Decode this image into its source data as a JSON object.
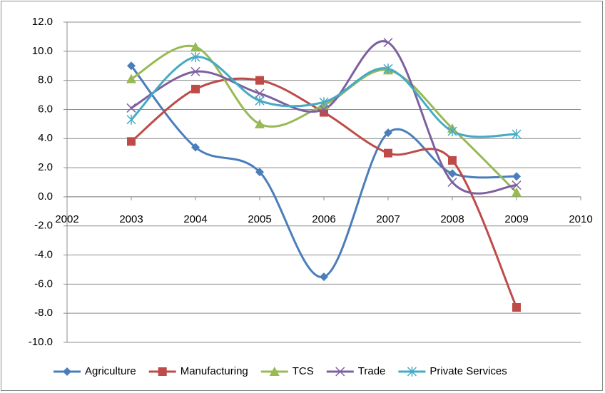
{
  "chart_data": {
    "type": "line",
    "x": [
      2003,
      2004,
      2005,
      2006,
      2007,
      2008,
      2009
    ],
    "xlim": [
      2002,
      2010
    ],
    "xticks": [
      2002,
      2003,
      2004,
      2005,
      2006,
      2007,
      2008,
      2009,
      2010
    ],
    "ylim": [
      -10,
      12
    ],
    "yticks": [
      {
        "value": -10,
        "label": "-10.0"
      },
      {
        "value": -8,
        "label": "-8.0"
      },
      {
        "value": -6,
        "label": "-6.0"
      },
      {
        "value": -4,
        "label": "-4.0"
      },
      {
        "value": -2,
        "label": "-2.0"
      },
      {
        "value": 0,
        "label": "0.0"
      },
      {
        "value": 2,
        "label": "2.0"
      },
      {
        "value": 4,
        "label": "4.0"
      },
      {
        "value": 6,
        "label": "6.0"
      },
      {
        "value": 8,
        "label": "8.0"
      },
      {
        "value": 10,
        "label": "10.0"
      },
      {
        "value": 12,
        "label": "12.0"
      }
    ],
    "grid": true,
    "smooth": true,
    "legend": "bottom",
    "series": [
      {
        "name": "Agriculture",
        "color": "#4a7ebb",
        "marker": "diamond",
        "values": [
          9.0,
          3.4,
          1.7,
          -5.5,
          4.4,
          1.6,
          1.4
        ]
      },
      {
        "name": "Manufacturing",
        "color": "#be4b48",
        "marker": "square",
        "values": [
          3.8,
          7.4,
          8.0,
          5.8,
          3.0,
          2.5,
          -7.6
        ]
      },
      {
        "name": "TCS",
        "color": "#98b954",
        "marker": "triangle",
        "values": [
          8.1,
          10.3,
          5.0,
          6.3,
          8.7,
          4.7,
          0.3
        ]
      },
      {
        "name": "Trade",
        "color": "#7d60a0",
        "marker": "x",
        "values": [
          6.1,
          8.6,
          7.1,
          6.0,
          10.6,
          1.0,
          0.8
        ]
      },
      {
        "name": "Private Services",
        "color": "#46aac5",
        "marker": "star",
        "values": [
          5.3,
          9.6,
          6.6,
          6.5,
          8.8,
          4.5,
          4.3
        ]
      }
    ]
  }
}
